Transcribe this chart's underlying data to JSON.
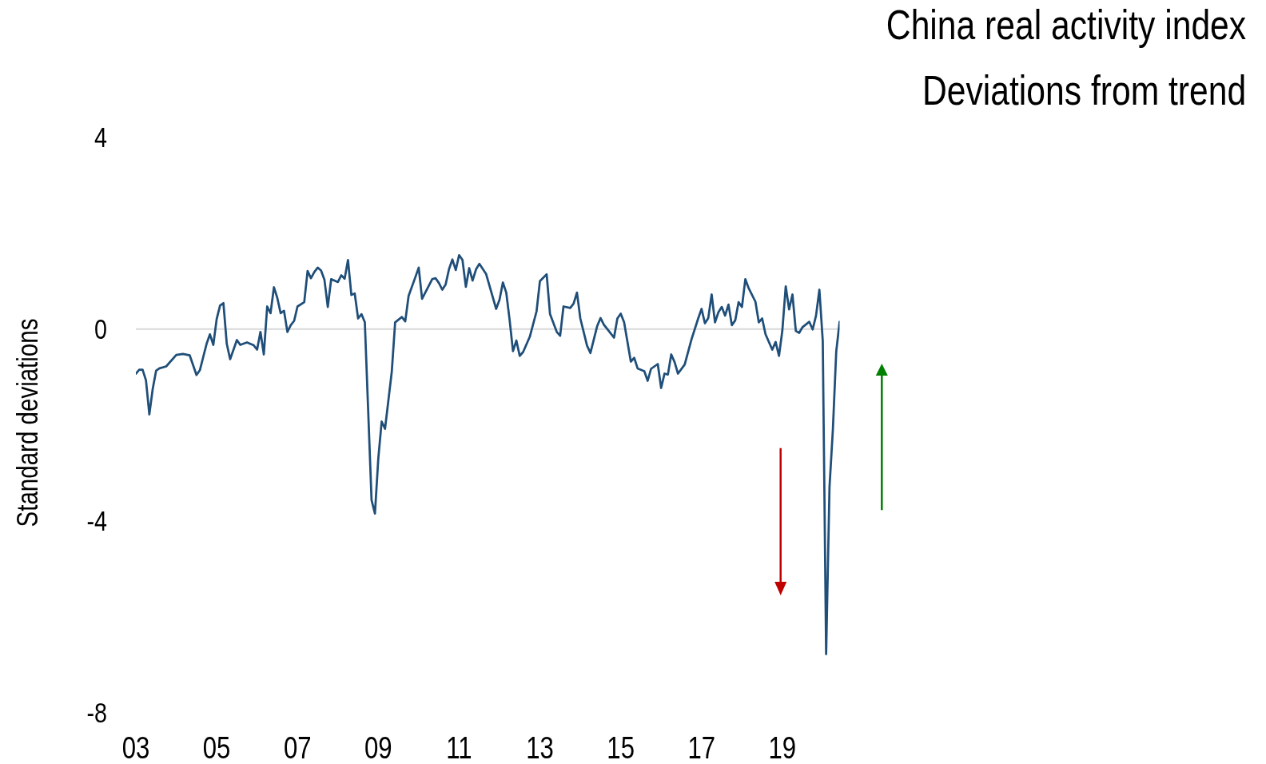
{
  "chart_data": {
    "type": "line",
    "title": "China real activity index",
    "subtitle": "Deviations from trend",
    "ylabel": "Standard deviations",
    "x": [
      "2003-01",
      "2003-02",
      "2003-03",
      "2003-04",
      "2003-05",
      "2003-06",
      "2003-07",
      "2003-08",
      "2003-10",
      "2004-01",
      "2004-03",
      "2004-05",
      "2004-07",
      "2004-08",
      "2004-10",
      "2004-11",
      "2004-12",
      "2005-01",
      "2005-02",
      "2005-03",
      "2005-04",
      "2005-05",
      "2005-07",
      "2005-08",
      "2005-10",
      "2005-12",
      "2006-01",
      "2006-02",
      "2006-03",
      "2006-04",
      "2006-05",
      "2006-06",
      "2006-07",
      "2006-08",
      "2006-09",
      "2006-10",
      "2006-11",
      "2006-12",
      "2007-01",
      "2007-03",
      "2007-04",
      "2007-05",
      "2007-06",
      "2007-07",
      "2007-08",
      "2007-09",
      "2007-10",
      "2007-11",
      "2008-01",
      "2008-02",
      "2008-03",
      "2008-04",
      "2008-05",
      "2008-06",
      "2008-07",
      "2008-08",
      "2008-09",
      "2008-11",
      "2008-12",
      "2009-01",
      "2009-02",
      "2009-03",
      "2009-05",
      "2009-06",
      "2009-08",
      "2009-09",
      "2009-10",
      "2009-12",
      "2010-01",
      "2010-02",
      "2010-05",
      "2010-06",
      "2010-07",
      "2010-08",
      "2010-09",
      "2010-10",
      "2010-11",
      "2010-12",
      "2011-01",
      "2011-02",
      "2011-03",
      "2011-04",
      "2011-05",
      "2011-06",
      "2011-07",
      "2011-09",
      "2011-12",
      "2012-01",
      "2012-02",
      "2012-03",
      "2012-04",
      "2012-05",
      "2012-06",
      "2012-07",
      "2012-08",
      "2012-10",
      "2012-12",
      "2013-01",
      "2013-03",
      "2013-04",
      "2013-06",
      "2013-07",
      "2013-08",
      "2013-10",
      "2013-11",
      "2013-12",
      "2014-01",
      "2014-03",
      "2014-04",
      "2014-06",
      "2014-07",
      "2014-08",
      "2014-11",
      "2014-12",
      "2015-01",
      "2015-02",
      "2015-04",
      "2015-05",
      "2015-06",
      "2015-08",
      "2015-09",
      "2015-10",
      "2015-12",
      "2016-01",
      "2016-02",
      "2016-03",
      "2016-04",
      "2016-05",
      "2016-06",
      "2016-08",
      "2016-10",
      "2016-12",
      "2017-01",
      "2017-02",
      "2017-03",
      "2017-04",
      "2017-05",
      "2017-06",
      "2017-07",
      "2017-08",
      "2017-09",
      "2017-10",
      "2017-11",
      "2017-12",
      "2018-01",
      "2018-02",
      "2018-03",
      "2018-05",
      "2018-06",
      "2018-07",
      "2018-08",
      "2018-10",
      "2018-11",
      "2018-12",
      "2019-01",
      "2019-02",
      "2019-03",
      "2019-04",
      "2019-05",
      "2019-06",
      "2019-07",
      "2019-09",
      "2019-10",
      "2019-11",
      "2019-12",
      "2020-01",
      "2020-02",
      "2020-03",
      "2020-04",
      "2020-05",
      "2020-06"
    ],
    "values": [
      -0.93,
      -0.85,
      -0.85,
      -1.07,
      -1.78,
      -1.25,
      -0.87,
      -0.82,
      -0.78,
      -0.54,
      -0.52,
      -0.55,
      -0.96,
      -0.86,
      -0.31,
      -0.11,
      -0.33,
      0.21,
      0.49,
      0.54,
      -0.31,
      -0.63,
      -0.23,
      -0.33,
      -0.28,
      -0.34,
      -0.43,
      -0.06,
      -0.53,
      0.47,
      0.33,
      0.87,
      0.65,
      0.33,
      0.38,
      -0.06,
      0.08,
      0.17,
      0.47,
      0.56,
      1.21,
      1.06,
      1.19,
      1.28,
      1.22,
      1.03,
      0.46,
      1.04,
      0.98,
      1.12,
      1.05,
      1.44,
      0.71,
      0.74,
      0.22,
      0.31,
      0.14,
      -3.57,
      -3.85,
      -2.7,
      -1.93,
      -2.08,
      -0.89,
      0.14,
      0.25,
      0.16,
      0.69,
      1.08,
      1.28,
      0.63,
      1.04,
      1.06,
      0.96,
      0.82,
      0.93,
      1.25,
      1.45,
      1.23,
      1.54,
      1.44,
      0.88,
      1.27,
      1.01,
      1.24,
      1.36,
      1.15,
      0.42,
      0.61,
      0.97,
      0.76,
      0.19,
      -0.46,
      -0.24,
      -0.56,
      -0.48,
      -0.16,
      0.37,
      1.0,
      1.14,
      0.31,
      -0.06,
      -0.14,
      0.47,
      0.44,
      0.53,
      0.76,
      0.22,
      -0.35,
      -0.5,
      0.06,
      0.23,
      0.09,
      -0.18,
      0.22,
      0.32,
      0.14,
      -0.68,
      -0.6,
      -0.82,
      -0.88,
      -1.08,
      -0.83,
      -0.73,
      -1.23,
      -0.93,
      -0.95,
      -0.53,
      -0.69,
      -0.93,
      -0.74,
      -0.22,
      0.22,
      0.42,
      0.12,
      0.23,
      0.72,
      0.14,
      0.35,
      0.46,
      0.28,
      0.51,
      0.08,
      0.18,
      0.56,
      0.46,
      1.04,
      0.85,
      0.57,
      0.14,
      0.22,
      -0.11,
      -0.43,
      -0.27,
      -0.56,
      -0.03,
      0.89,
      0.41,
      0.72,
      -0.04,
      -0.08,
      0.04,
      0.15,
      -0.01,
      0.28,
      0.82,
      -0.25,
      -6.78,
      -3.3,
      -2.1,
      -0.47,
      0.15
    ],
    "color": "#1f4e79",
    "marker": "none",
    "xlim": [
      "2003-01",
      "2020-06"
    ],
    "xticks": [
      {
        "value": "2003",
        "label": "03"
      },
      {
        "value": "2005",
        "label": "05"
      },
      {
        "value": "2007",
        "label": "07"
      },
      {
        "value": "2009",
        "label": "09"
      },
      {
        "value": "2011",
        "label": "11"
      },
      {
        "value": "2013",
        "label": "13"
      },
      {
        "value": "2015",
        "label": "15"
      },
      {
        "value": "2017",
        "label": "17"
      },
      {
        "value": "2019",
        "label": "19"
      }
    ],
    "ylim": [
      -8,
      4
    ],
    "yticks": [
      -8,
      -4,
      0,
      4
    ],
    "ref_lines": [
      {
        "axis": "y",
        "value": 0,
        "color": "#d9d9d9"
      }
    ]
  }
}
